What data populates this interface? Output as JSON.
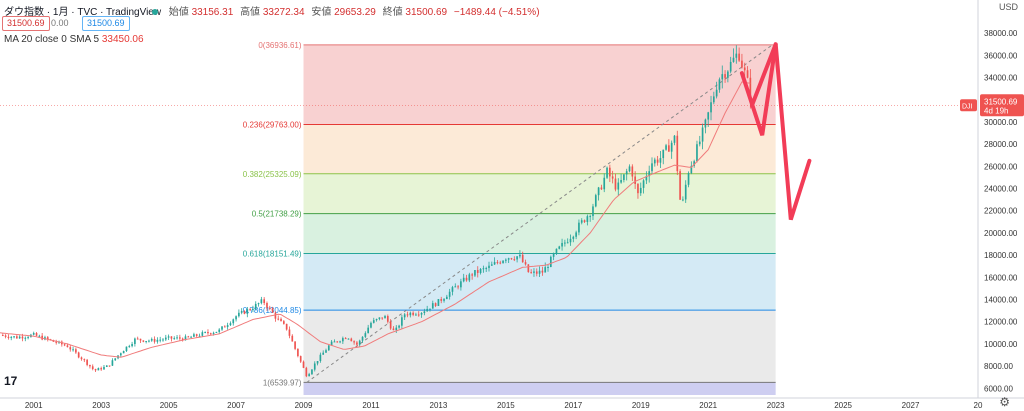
{
  "header": {
    "title": "ダウ指数 · 1月 · TVC · TradingView",
    "open_label": "始値",
    "open": "33156.31",
    "high_label": "高値",
    "high": "33272.34",
    "low_label": "安値",
    "low": "29653.29",
    "close_label": "終値",
    "close": "31500.69",
    "change": "−1489.44 (−4.51%)",
    "bid_box": "31500.69",
    "spread": "0.00",
    "ask_box": "31500.69",
    "ma_label": "MA 20 close 0 SMA 5",
    "ma_value": "33450.06",
    "currency": "USD",
    "logo": "17"
  },
  "price_tag": {
    "symbol": "DJI",
    "price": "31500.69",
    "countdown": "4d 19h"
  },
  "colors": {
    "up": "#26a69a",
    "down": "#ef5350",
    "ma": "#f07b7b",
    "arrow": "#f23c57",
    "fib_0_236": "#f7c9c9",
    "fib_236_382": "#fbe6d0",
    "fib_382_5": "#e3f2cf",
    "fib_5_618": "#d2eedb",
    "fib_618_786": "#cde6f3",
    "fib_786_1": "#e6e6e6",
    "fib_below": "#c9c9ef"
  },
  "chart_data": {
    "type": "candlestick",
    "title": "ダウ指数 1月 TVC",
    "xlabel": "",
    "ylabel": "USD",
    "x_ticks": [
      "2001",
      "2003",
      "2005",
      "2007",
      "2009",
      "2011",
      "2013",
      "2015",
      "2017",
      "2019",
      "2021",
      "2023",
      "2025",
      "2027",
      "20"
    ],
    "y_ticks": [
      6000,
      8000,
      10000,
      12000,
      14000,
      16000,
      18000,
      20000,
      22000,
      24000,
      26000,
      28000,
      30000,
      32000,
      34000,
      36000,
      38000
    ],
    "ylim": [
      5400,
      39000
    ],
    "xlim": [
      2000.0,
      2029.0
    ],
    "fib_levels": [
      {
        "label": "0(36936.61)",
        "value": 36936.61,
        "color": "#e57373"
      },
      {
        "label": "0.236(29763.00)",
        "value": 29763.0,
        "color": "#e53935"
      },
      {
        "label": "0.382(25325.09)",
        "value": 25325.09,
        "color": "#8bc34a"
      },
      {
        "label": "0.5(21738.29)",
        "value": 21738.29,
        "color": "#43a047"
      },
      {
        "label": "0.618(18151.49)",
        "value": 18151.49,
        "color": "#26a69a"
      },
      {
        "label": "0.786(13044.85)",
        "value": 13044.85,
        "color": "#1e88e5"
      },
      {
        "label": "1(6539.97)",
        "value": 6539.97,
        "color": "#777777"
      }
    ],
    "fib_x_range": [
      2009.0,
      2023.0
    ],
    "trendline": {
      "from": [
        2009.1,
        6539.97
      ],
      "to": [
        2022.9,
        36936.61
      ]
    },
    "price_keypoints": [
      [
        2000.0,
        10800
      ],
      [
        2000.5,
        10600
      ],
      [
        2001.0,
        10800
      ],
      [
        2001.5,
        10300
      ],
      [
        2002.0,
        9800
      ],
      [
        2002.5,
        8500
      ],
      [
        2002.8,
        7600
      ],
      [
        2003.2,
        8000
      ],
      [
        2003.6,
        9300
      ],
      [
        2004.0,
        10400
      ],
      [
        2004.5,
        10300
      ],
      [
        2005.0,
        10500
      ],
      [
        2005.5,
        10500
      ],
      [
        2006.0,
        10900
      ],
      [
        2006.5,
        11200
      ],
      [
        2007.0,
        12500
      ],
      [
        2007.5,
        13300
      ],
      [
        2007.8,
        13900
      ],
      [
        2008.2,
        12300
      ],
      [
        2008.5,
        11400
      ],
      [
        2008.8,
        9200
      ],
      [
        2009.1,
        7100
      ],
      [
        2009.4,
        8500
      ],
      [
        2009.8,
        10000
      ],
      [
        2010.3,
        10700
      ],
      [
        2010.6,
        9900
      ],
      [
        2011.0,
        11900
      ],
      [
        2011.4,
        12500
      ],
      [
        2011.7,
        11000
      ],
      [
        2012.0,
        12700
      ],
      [
        2012.5,
        12900
      ],
      [
        2013.0,
        13800
      ],
      [
        2013.5,
        15100
      ],
      [
        2014.0,
        16300
      ],
      [
        2014.5,
        16900
      ],
      [
        2015.0,
        17800
      ],
      [
        2015.4,
        17900
      ],
      [
        2015.7,
        16300
      ],
      [
        2016.1,
        16500
      ],
      [
        2016.5,
        18300
      ],
      [
        2017.0,
        20000
      ],
      [
        2017.5,
        21900
      ],
      [
        2018.0,
        25500
      ],
      [
        2018.3,
        24000
      ],
      [
        2018.7,
        26100
      ],
      [
        2018.9,
        23300
      ],
      [
        2019.3,
        26300
      ],
      [
        2019.6,
        26800
      ],
      [
        2020.0,
        28500
      ],
      [
        2020.2,
        21900
      ],
      [
        2020.4,
        25500
      ],
      [
        2020.7,
        27800
      ],
      [
        2020.9,
        29600
      ],
      [
        2021.3,
        33900
      ],
      [
        2021.6,
        34900
      ],
      [
        2021.9,
        36300
      ],
      [
        2022.0,
        35200
      ],
      [
        2022.2,
        33200
      ],
      [
        2022.3,
        31500
      ]
    ],
    "ma20_keypoints": [
      [
        2000.0,
        11000
      ],
      [
        2001.0,
        10700
      ],
      [
        2002.0,
        10000
      ],
      [
        2003.0,
        9000
      ],
      [
        2003.6,
        8800
      ],
      [
        2004.5,
        9700
      ],
      [
        2005.5,
        10400
      ],
      [
        2006.5,
        10900
      ],
      [
        2007.5,
        12200
      ],
      [
        2008.3,
        12700
      ],
      [
        2008.8,
        11800
      ],
      [
        2009.5,
        10200
      ],
      [
        2010.2,
        9500
      ],
      [
        2010.8,
        9800
      ],
      [
        2011.5,
        10900
      ],
      [
        2012.5,
        12000
      ],
      [
        2013.5,
        13600
      ],
      [
        2014.5,
        15600
      ],
      [
        2015.5,
        16900
      ],
      [
        2016.2,
        17100
      ],
      [
        2016.8,
        17800
      ],
      [
        2017.5,
        20000
      ],
      [
        2018.2,
        23000
      ],
      [
        2018.8,
        24600
      ],
      [
        2019.5,
        25500
      ],
      [
        2020.0,
        26100
      ],
      [
        2020.5,
        25900
      ],
      [
        2021.0,
        27500
      ],
      [
        2021.5,
        30800
      ],
      [
        2022.0,
        33600
      ],
      [
        2022.3,
        33450
      ]
    ],
    "projection": [
      [
        2022.3,
        31500
      ],
      [
        2023.0,
        37000
      ],
      [
        2023.45,
        21200
      ],
      [
        2024.0,
        26500
      ]
    ]
  }
}
